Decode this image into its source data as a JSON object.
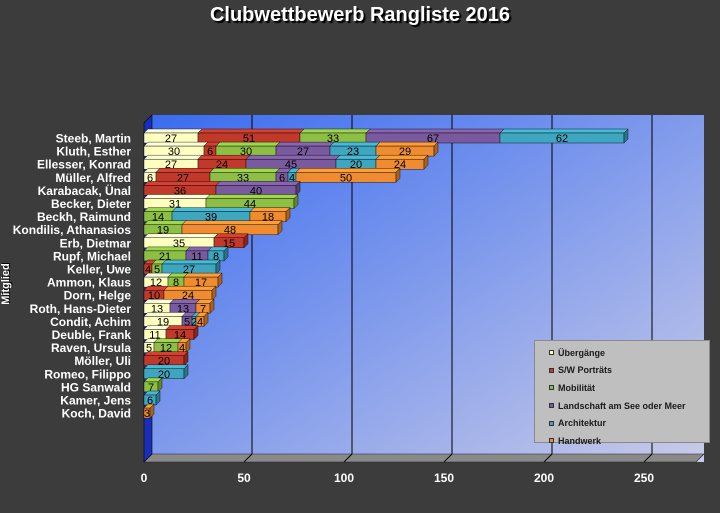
{
  "chart_data": {
    "type": "bar",
    "orientation": "horizontal",
    "stacked": true,
    "title": "Clubwettbewerb Rangliste 2016",
    "ylabel": "Mitglied",
    "xlim": [
      0,
      280
    ],
    "x_ticks": [
      0,
      50,
      100,
      150,
      200,
      250
    ],
    "grid": true,
    "legend_position": "bottom-right",
    "categories": [
      "Steeb, Martin",
      "Kluth, Esther",
      "Ellesser, Konrad",
      "Müller, Alfred",
      "Karabacak, Ünal",
      "Becker, Dieter",
      "Beckh, Raimund",
      "Kondilis, Athanasios",
      "Erb, Dietmar",
      "Rupf, Michael",
      "Keller, Uwe",
      "Ammon, Klaus",
      "Dorn, Helge",
      "Roth, Hans-Dieter",
      "Condit, Achim",
      "Deuble, Frank",
      "Raven, Ursula",
      "Möller, Uli",
      "Romeo, Filippo",
      "HG Sanwald",
      "Kamer, Jens",
      "Koch, David"
    ],
    "series": [
      {
        "name": "Übergänge",
        "color": "#ffffc0",
        "values": [
          27,
          30,
          27,
          6,
          0,
          31,
          0,
          0,
          35,
          0,
          0,
          12,
          0,
          13,
          19,
          11,
          5,
          0,
          0,
          0,
          0,
          0
        ]
      },
      {
        "name": "S/W Porträts",
        "color": "#c0392b",
        "values": [
          51,
          6,
          24,
          27,
          36,
          0,
          0,
          0,
          15,
          0,
          4,
          0,
          10,
          0,
          0,
          14,
          0,
          20,
          0,
          0,
          0,
          0
        ]
      },
      {
        "name": "Mobilität",
        "color": "#8dbf45",
        "values": [
          33,
          30,
          0,
          33,
          0,
          44,
          14,
          19,
          0,
          21,
          5,
          8,
          0,
          0,
          0,
          0,
          12,
          0,
          0,
          7,
          0,
          0
        ]
      },
      {
        "name": "Landschaft am See oder Meer",
        "color": "#7a5a9e",
        "values": [
          67,
          27,
          45,
          6,
          40,
          0,
          0,
          0,
          0,
          11,
          0,
          0,
          0,
          13,
          5,
          0,
          0,
          0,
          0,
          0,
          0,
          0
        ]
      },
      {
        "name": "Architektur",
        "color": "#3fa6c0",
        "values": [
          62,
          23,
          20,
          4,
          0,
          0,
          39,
          0,
          0,
          8,
          27,
          0,
          0,
          0,
          2,
          0,
          0,
          0,
          20,
          0,
          6,
          0
        ]
      },
      {
        "name": "Handwerk",
        "color": "#ef8c30",
        "values": [
          0,
          29,
          24,
          50,
          0,
          0,
          18,
          48,
          0,
          0,
          0,
          17,
          24,
          7,
          4,
          0,
          4,
          0,
          0,
          0,
          0,
          3
        ]
      }
    ]
  }
}
